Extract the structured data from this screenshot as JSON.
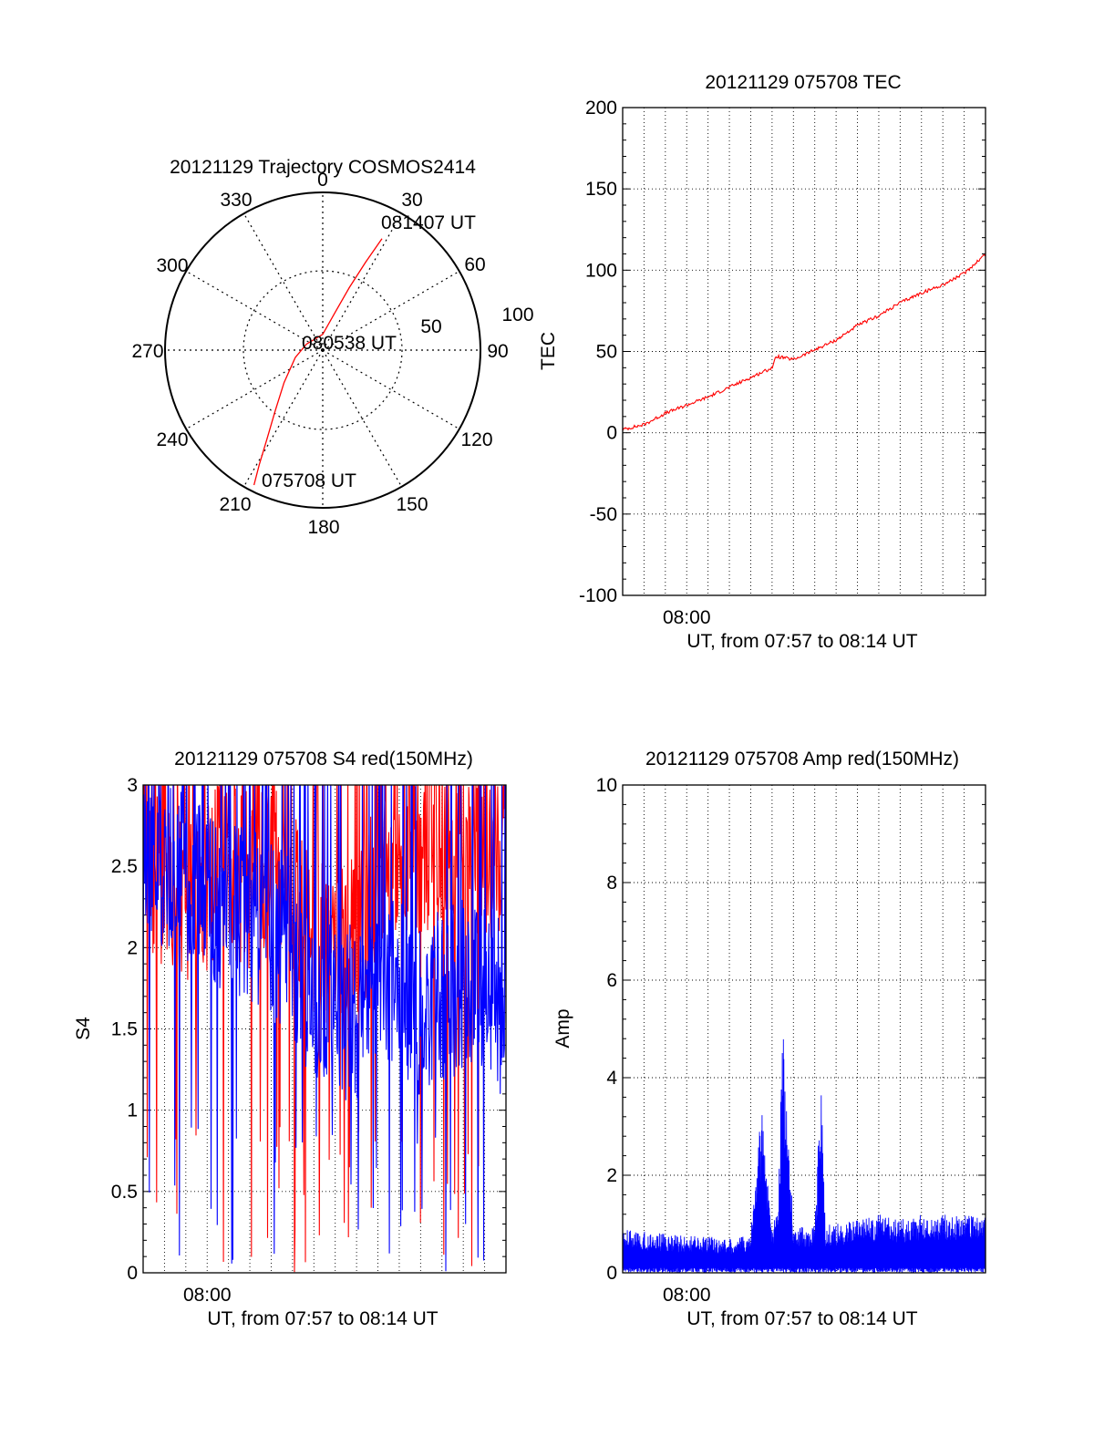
{
  "chart_data": [
    {
      "type": "polar",
      "title": "20121129 Trajectory COSMOS2414",
      "angle_labels": [
        "0",
        "30",
        "60",
        "90",
        "120",
        "150",
        "180",
        "210",
        "240",
        "270",
        "300",
        "330"
      ],
      "radial_labels": [
        "50",
        "100"
      ],
      "start_label": "075708 UT",
      "mid_label": "080538 UT",
      "end_label": "081407 UT",
      "trajectory": {
        "color": "#ff0000",
        "points": [
          {
            "azimuth": 207,
            "radius": 96
          },
          {
            "azimuth": 209,
            "radius": 83
          },
          {
            "azimuth": 212,
            "radius": 67
          },
          {
            "azimuth": 218,
            "radius": 49
          },
          {
            "azimuth": 230,
            "radius": 32
          },
          {
            "azimuth": 255,
            "radius": 18
          },
          {
            "azimuth": 290,
            "radius": 11
          },
          {
            "azimuth": 0,
            "radius": 10
          },
          {
            "azimuth": 18,
            "radius": 25
          },
          {
            "azimuth": 23,
            "radius": 43
          },
          {
            "azimuth": 26,
            "radius": 62
          },
          {
            "azimuth": 28,
            "radius": 80
          }
        ]
      }
    },
    {
      "type": "line",
      "title": "20121129 075708 TEC",
      "ylabel": "TEC",
      "xlabel": "UT, from 07:57 to 08:14 UT",
      "x_tick_label": "08:00",
      "x_tick_minutes": 3,
      "xlim_minutes": [
        0,
        17
      ],
      "ylim": [
        -100,
        200
      ],
      "yticks": [
        "-100",
        "-50",
        "0",
        "50",
        "100",
        "150",
        "200"
      ],
      "grid": true,
      "series": [
        {
          "color": "#ff0000",
          "x_minutes": [
            0,
            1,
            2,
            3,
            4,
            5,
            6,
            7,
            7.2,
            8,
            9,
            10,
            11,
            12,
            13,
            14,
            15,
            16,
            17
          ],
          "values": [
            2,
            5,
            12,
            17,
            22,
            28,
            34,
            40,
            47,
            45,
            51,
            57,
            66,
            72,
            80,
            86,
            91,
            98,
            110
          ]
        }
      ]
    },
    {
      "type": "line",
      "title": "20121129 075708 S4 red(150MHz)",
      "ylabel": "S4",
      "xlabel": "UT, from 07:57 to 08:14 UT",
      "x_tick_label": "08:00",
      "x_tick_minutes": 3,
      "xlim_minutes": [
        0,
        17
      ],
      "ylim": [
        0,
        3
      ],
      "yticks": [
        "0",
        "0.5",
        "1",
        "1.5",
        "2",
        "2.5",
        "3"
      ],
      "grid": true,
      "series": [
        {
          "color": "#ff0000",
          "x_minutes": [
            0,
            1,
            2,
            3,
            4,
            5,
            6,
            7,
            8,
            9,
            10,
            11,
            12,
            13,
            14,
            15,
            16,
            17
          ],
          "values": [
            2.5,
            2.4,
            2.3,
            2.4,
            2.5,
            2.4,
            2.6,
            2.3,
            2.1,
            2.0,
            2.1,
            2.4,
            2.6,
            2.6,
            2.7,
            2.6,
            2.6,
            2.6
          ]
        },
        {
          "color": "#0000ff",
          "x_minutes": [
            0,
            1,
            2,
            3,
            4,
            5,
            6,
            7,
            8,
            9,
            10,
            11,
            12,
            13,
            14,
            15,
            16,
            17
          ],
          "values": [
            2.7,
            2.5,
            2.4,
            2.3,
            2.3,
            2.2,
            2.1,
            2.0,
            1.7,
            1.6,
            1.6,
            1.7,
            1.8,
            1.6,
            1.7,
            1.8,
            1.7,
            1.6
          ]
        }
      ]
    },
    {
      "type": "line",
      "title": "20121129 075708 Amp red(150MHz)",
      "ylabel": "Amp",
      "xlabel": "UT, from 07:57 to 08:14 UT",
      "x_tick_label": "08:00",
      "x_tick_minutes": 3,
      "xlim_minutes": [
        0,
        17
      ],
      "ylim": [
        0,
        10
      ],
      "yticks": [
        "0",
        "2",
        "4",
        "6",
        "8",
        "10"
      ],
      "grid": true,
      "series": [
        {
          "color": "#0000ff",
          "x_minutes": [
            0,
            1,
            2,
            3,
            4,
            5,
            6,
            6.5,
            7,
            7.3,
            7.5,
            8,
            9,
            9.3,
            9.5,
            10,
            11,
            12,
            13,
            14,
            15,
            16,
            17
          ],
          "values": [
            0.9,
            0.85,
            0.8,
            0.75,
            0.75,
            0.7,
            0.8,
            3.5,
            0.9,
            1.7,
            5.2,
            0.9,
            1.0,
            4.1,
            1.0,
            1.0,
            1.1,
            1.2,
            1.1,
            1.2,
            1.2,
            1.2,
            1.2
          ]
        }
      ]
    }
  ]
}
